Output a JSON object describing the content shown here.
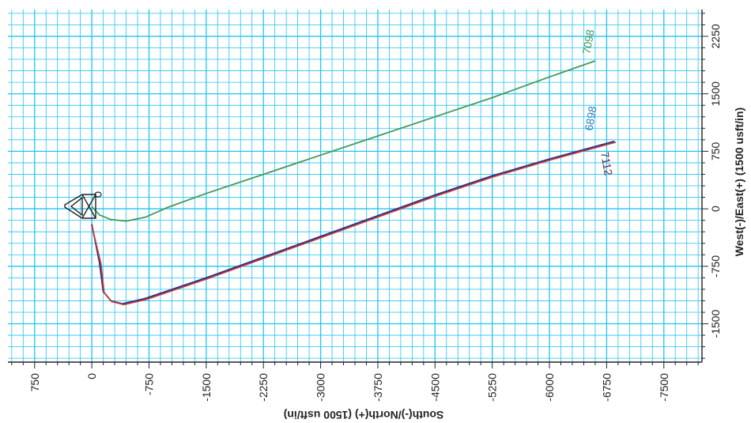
{
  "chart_data": {
    "type": "line",
    "x_axis": {
      "label": "South(-)/North(+) (1500 usft/in)",
      "ticks": [
        750,
        0,
        -750,
        -1500,
        -2250,
        -3000,
        -3750,
        -4500,
        -5250,
        -6000,
        -6750,
        -7500
      ],
      "tick_labels": [
        "750",
        "0",
        "-750",
        "-1500",
        "-2250",
        "-3000",
        "-3750",
        "-4500",
        "-5250",
        "-6000",
        "-6750",
        "-7500"
      ],
      "range": [
        1100,
        -8000
      ]
    },
    "y_axis": {
      "label": "West(-)/East(+) (1500 usft/in)",
      "ticks": [
        2250,
        1500,
        750,
        0,
        -750,
        -1500
      ],
      "tick_labels": [
        "2250",
        "1500",
        "750",
        "0",
        "-750",
        "-1500"
      ],
      "range": [
        -2000,
        2600
      ]
    },
    "grid": true,
    "colors": {
      "grid": "#22c4ee",
      "axis": "#222222",
      "tick_text": "#222222"
    },
    "series": [
      {
        "name": "7098",
        "color": "#3f9a5a",
        "points": [
          [
            0,
            30
          ],
          [
            -100,
            -80
          ],
          [
            -250,
            -140
          ],
          [
            -450,
            -160
          ],
          [
            -700,
            -110
          ],
          [
            -1000,
            20
          ],
          [
            -1500,
            200
          ],
          [
            -2250,
            450
          ],
          [
            -3000,
            700
          ],
          [
            -3750,
            950
          ],
          [
            -4500,
            1200
          ],
          [
            -5250,
            1450
          ],
          [
            -6000,
            1720
          ],
          [
            -6600,
            1930
          ]
        ]
      },
      {
        "name": "6898",
        "color": "#1c2d8c",
        "points": [
          [
            0,
            -200
          ],
          [
            -100,
            -700
          ],
          [
            -150,
            -1080
          ],
          [
            -250,
            -1200
          ],
          [
            -400,
            -1240
          ],
          [
            -700,
            -1170
          ],
          [
            -1500,
            -900
          ],
          [
            -2250,
            -630
          ],
          [
            -3000,
            -360
          ],
          [
            -3750,
            -90
          ],
          [
            -4500,
            180
          ],
          [
            -5250,
            430
          ],
          [
            -6000,
            650
          ],
          [
            -6850,
            880
          ]
        ]
      },
      {
        "name": "7112",
        "color": "#c23a3a",
        "points": [
          [
            0,
            -220
          ],
          [
            -120,
            -720
          ],
          [
            -160,
            -1090
          ],
          [
            -260,
            -1210
          ],
          [
            -420,
            -1250
          ],
          [
            -720,
            -1180
          ],
          [
            -1520,
            -910
          ],
          [
            -2270,
            -640
          ],
          [
            -3020,
            -370
          ],
          [
            -3770,
            -100
          ],
          [
            -4520,
            170
          ],
          [
            -5270,
            420
          ],
          [
            -6020,
            640
          ],
          [
            -6870,
            870
          ]
        ]
      }
    ],
    "annotations": [
      {
        "text": "7098",
        "color": "#3f9a5a",
        "x": -6560,
        "y": 2170,
        "rotate": -80
      },
      {
        "text": "6898",
        "color": "#2680c6",
        "x": -6590,
        "y": 1170,
        "rotate": -80
      },
      {
        "text": "7112",
        "color": "#5a2a4a",
        "x": -6700,
        "y": 580,
        "rotate": 80
      }
    ]
  }
}
